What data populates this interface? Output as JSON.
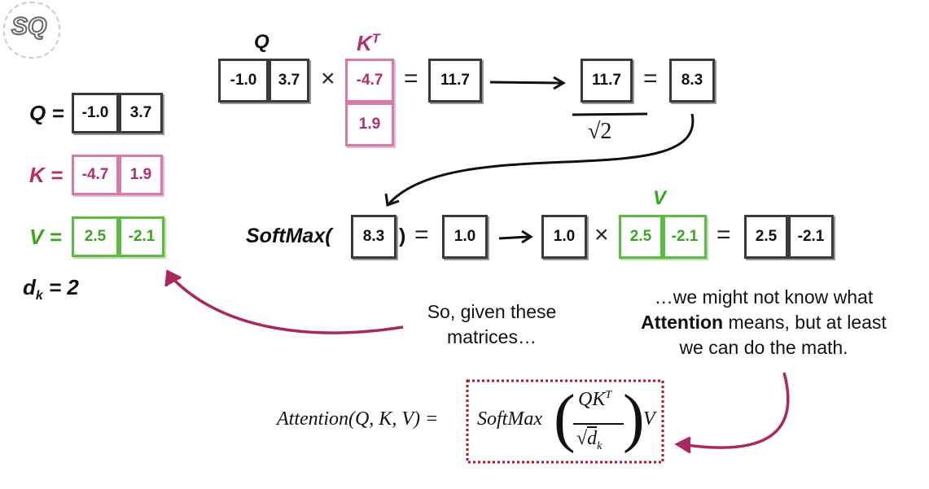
{
  "left_defs": {
    "q_label": "Q =",
    "q": [
      "-1.0",
      "3.7"
    ],
    "k_label": "K =",
    "k": [
      "-4.7",
      "1.9"
    ],
    "v_label": "V =",
    "v": [
      "2.5",
      "-2.1"
    ],
    "dk_label": "d",
    "dk_sub": "k",
    "dk_rest": " = 2"
  },
  "top_row": {
    "q_header": "Q",
    "kt_header": "K",
    "kt_sup": "T",
    "q": [
      "-1.0",
      "3.7"
    ],
    "times": "×",
    "kt": [
      "-4.7",
      "1.9"
    ],
    "equals": "=",
    "dot_result": "11.7",
    "scaled_numerator": "11.7",
    "scaled_denominator": "√2",
    "equals2": "=",
    "scaled_result": "8.3"
  },
  "softmax_row": {
    "softmax_label": "SoftMax(",
    "input": "8.3",
    "close_paren": ")",
    "equals": "=",
    "output": "1.0",
    "weight": "1.0",
    "times": "×",
    "v_header": "V",
    "v": [
      "2.5",
      "-2.1"
    ],
    "equals2": "=",
    "result": [
      "2.5",
      "-2.1"
    ]
  },
  "notes": {
    "given": [
      "So, given these",
      "matrices…"
    ],
    "math_line1": "…we might not know what",
    "math_bold": "Attention",
    "math_line2_rest": " means, but at least",
    "math_line3": "we can do the math."
  },
  "formula": {
    "lhs": "Attention(Q, K, V) =",
    "softmax": "SoftMax",
    "numerator": "QK",
    "numerator_sup": "T",
    "denominator": "d",
    "denominator_sub": "k",
    "v": "V"
  },
  "logo": {
    "text": "SQ"
  },
  "colors": {
    "pink": "#b0306e",
    "green": "#3aa521",
    "dark": "#3a3a3a",
    "arrow": "#a8285f",
    "box": "#b3122b"
  }
}
